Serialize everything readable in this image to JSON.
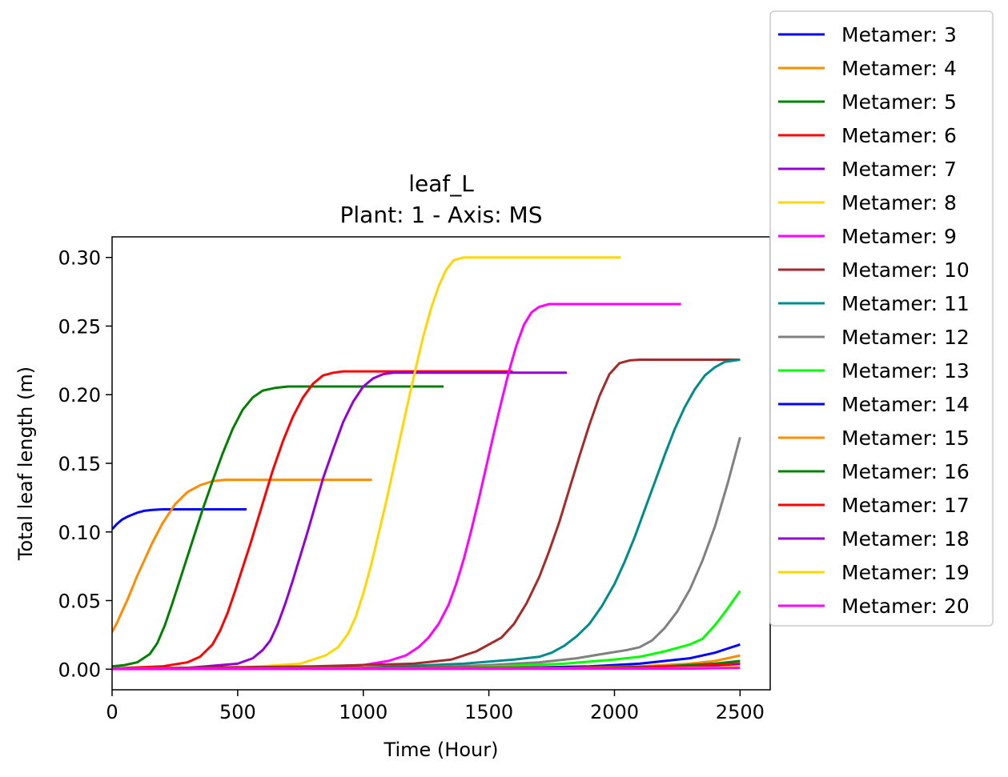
{
  "chart_data": {
    "type": "line",
    "title": "leaf_L",
    "subtitle": "Plant: 1 - Axis: MS",
    "xlabel": "Time (Hour)",
    "ylabel": "Total leaf length (m)",
    "xlim": [
      0,
      2620
    ],
    "ylim": [
      -0.015,
      0.315
    ],
    "xticks": [
      0,
      500,
      1000,
      1500,
      2000,
      2500
    ],
    "yticks": [
      0.0,
      0.05,
      0.1,
      0.15,
      0.2,
      0.25,
      0.3
    ],
    "xtick_labels": [
      "0",
      "500",
      "1000",
      "1500",
      "2000",
      "2500"
    ],
    "ytick_labels": [
      "0.00",
      "0.05",
      "0.10",
      "0.15",
      "0.20",
      "0.25",
      "0.30"
    ],
    "grid": false,
    "legend_position": "outside upper right",
    "series": [
      {
        "name": "Metamer: 3",
        "color": "#0000ff",
        "x": [
          0,
          20,
          40,
          60,
          80,
          100,
          130,
          160,
          200,
          250,
          300,
          400,
          535
        ],
        "y": [
          0.102,
          0.106,
          0.109,
          0.111,
          0.1125,
          0.114,
          0.1155,
          0.116,
          0.1165,
          0.1165,
          0.1165,
          0.1165,
          0.1165
        ]
      },
      {
        "name": "Metamer: 4",
        "color": "#ff8c00",
        "x": [
          0,
          20,
          40,
          60,
          80,
          100,
          130,
          160,
          200,
          250,
          300,
          350,
          400,
          450,
          500,
          600,
          800,
          1035
        ],
        "y": [
          0.027,
          0.034,
          0.042,
          0.05,
          0.059,
          0.068,
          0.08,
          0.092,
          0.106,
          0.12,
          0.129,
          0.134,
          0.137,
          0.138,
          0.138,
          0.138,
          0.138,
          0.138
        ]
      },
      {
        "name": "Metamer: 5",
        "color": "#008000",
        "x": [
          0,
          50,
          100,
          150,
          180,
          210,
          240,
          270,
          300,
          330,
          360,
          400,
          440,
          480,
          520,
          560,
          600,
          650,
          700,
          800,
          1000,
          1320
        ],
        "y": [
          0.002,
          0.003,
          0.005,
          0.011,
          0.019,
          0.032,
          0.048,
          0.065,
          0.082,
          0.099,
          0.116,
          0.137,
          0.157,
          0.175,
          0.189,
          0.198,
          0.203,
          0.205,
          0.206,
          0.206,
          0.206,
          0.206
        ]
      },
      {
        "name": "Metamer: 6",
        "color": "#ff0000",
        "x": [
          0,
          200,
          300,
          350,
          400,
          430,
          460,
          490,
          520,
          550,
          580,
          610,
          640,
          680,
          720,
          760,
          800,
          840,
          880,
          920,
          1000,
          1200,
          1595
        ],
        "y": [
          0.0005,
          0.002,
          0.005,
          0.009,
          0.018,
          0.028,
          0.041,
          0.057,
          0.074,
          0.091,
          0.109,
          0.127,
          0.145,
          0.166,
          0.184,
          0.198,
          0.208,
          0.214,
          0.216,
          0.217,
          0.217,
          0.217,
          0.217
        ]
      },
      {
        "name": "Metamer: 7",
        "color": "#9400d3",
        "x": [
          0,
          300,
          500,
          560,
          600,
          630,
          660,
          690,
          720,
          750,
          780,
          810,
          840,
          880,
          920,
          960,
          1000,
          1040,
          1080,
          1120,
          1200,
          1400,
          1810
        ],
        "y": [
          0.0005,
          0.001,
          0.004,
          0.008,
          0.014,
          0.021,
          0.033,
          0.048,
          0.065,
          0.083,
          0.101,
          0.12,
          0.139,
          0.16,
          0.18,
          0.195,
          0.206,
          0.212,
          0.215,
          0.216,
          0.216,
          0.216,
          0.216
        ]
      },
      {
        "name": "Metamer: 8",
        "color": "#ffd700",
        "x": [
          0,
          500,
          750,
          850,
          900,
          940,
          970,
          1000,
          1030,
          1060,
          1090,
          1120,
          1150,
          1180,
          1210,
          1240,
          1270,
          1300,
          1330,
          1360,
          1400,
          1500,
          1700,
          2025
        ],
        "y": [
          0.0005,
          0.001,
          0.004,
          0.01,
          0.016,
          0.026,
          0.038,
          0.055,
          0.075,
          0.098,
          0.121,
          0.146,
          0.171,
          0.196,
          0.22,
          0.243,
          0.263,
          0.279,
          0.291,
          0.298,
          0.3,
          0.3,
          0.3,
          0.3
        ]
      },
      {
        "name": "Metamer: 9",
        "color": "#ff00ff",
        "x": [
          0,
          700,
          1000,
          1100,
          1170,
          1220,
          1260,
          1300,
          1340,
          1370,
          1400,
          1430,
          1460,
          1490,
          1520,
          1550,
          1580,
          1610,
          1640,
          1670,
          1700,
          1740,
          1800,
          2000,
          2265
        ],
        "y": [
          0.0005,
          0.001,
          0.003,
          0.006,
          0.01,
          0.016,
          0.023,
          0.033,
          0.047,
          0.062,
          0.08,
          0.101,
          0.124,
          0.148,
          0.172,
          0.195,
          0.217,
          0.236,
          0.251,
          0.26,
          0.264,
          0.266,
          0.266,
          0.266,
          0.266
        ]
      },
      {
        "name": "Metamer: 10",
        "color": "#a52a2a",
        "x": [
          0,
          800,
          1200,
          1350,
          1450,
          1550,
          1600,
          1650,
          1700,
          1740,
          1780,
          1820,
          1860,
          1900,
          1940,
          1980,
          2020,
          2060,
          2100,
          2200,
          2500
        ],
        "y": [
          0.0005,
          0.002,
          0.004,
          0.007,
          0.013,
          0.023,
          0.033,
          0.048,
          0.067,
          0.086,
          0.107,
          0.131,
          0.155,
          0.178,
          0.199,
          0.215,
          0.223,
          0.225,
          0.2255,
          0.2255,
          0.2255
        ]
      },
      {
        "name": "Metamer: 11",
        "color": "#008b8b",
        "x": [
          0,
          1000,
          1400,
          1600,
          1700,
          1750,
          1800,
          1850,
          1900,
          1950,
          2000,
          2040,
          2080,
          2120,
          2160,
          2200,
          2240,
          2280,
          2320,
          2360,
          2400,
          2440,
          2500
        ],
        "y": [
          0.0005,
          0.001,
          0.004,
          0.007,
          0.009,
          0.012,
          0.017,
          0.024,
          0.033,
          0.046,
          0.062,
          0.078,
          0.096,
          0.116,
          0.136,
          0.156,
          0.175,
          0.191,
          0.204,
          0.214,
          0.22,
          0.224,
          0.2255
        ]
      },
      {
        "name": "Metamer: 12",
        "color": "#808080",
        "x": [
          0,
          1200,
          1500,
          1700,
          1850,
          1950,
          2050,
          2100,
          2150,
          2200,
          2250,
          2300,
          2350,
          2400,
          2450,
          2500
        ],
        "y": [
          0.0005,
          0.001,
          0.003,
          0.005,
          0.008,
          0.011,
          0.014,
          0.016,
          0.021,
          0.03,
          0.042,
          0.058,
          0.079,
          0.104,
          0.135,
          0.169
        ]
      },
      {
        "name": "Metamer: 13",
        "color": "#00ff00",
        "x": [
          0,
          1400,
          1800,
          2000,
          2100,
          2200,
          2300,
          2350,
          2400,
          2450,
          2500
        ],
        "y": [
          0.0005,
          0.001,
          0.004,
          0.007,
          0.009,
          0.013,
          0.018,
          0.022,
          0.032,
          0.044,
          0.057
        ]
      },
      {
        "name": "Metamer: 14",
        "color": "#0000ff",
        "x": [
          0,
          1600,
          1900,
          2100,
          2200,
          2300,
          2400,
          2450,
          2500
        ],
        "y": [
          0.0005,
          0.001,
          0.002,
          0.004,
          0.006,
          0.008,
          0.012,
          0.015,
          0.018
        ]
      },
      {
        "name": "Metamer: 15",
        "color": "#ff8c00",
        "x": [
          0,
          1800,
          2100,
          2300,
          2400,
          2450,
          2500
        ],
        "y": [
          0.0005,
          0.001,
          0.002,
          0.004,
          0.006,
          0.008,
          0.01
        ]
      },
      {
        "name": "Metamer: 16",
        "color": "#008000",
        "x": [
          0,
          1900,
          2200,
          2400,
          2500
        ],
        "y": [
          0.0005,
          0.001,
          0.002,
          0.004,
          0.006
        ]
      },
      {
        "name": "Metamer: 17",
        "color": "#ff0000",
        "x": [
          0,
          2000,
          2300,
          2400,
          2500
        ],
        "y": [
          0.0005,
          0.001,
          0.002,
          0.003,
          0.004
        ]
      },
      {
        "name": "Metamer: 18",
        "color": "#9400d3",
        "x": [
          0,
          2100,
          2400,
          2500
        ],
        "y": [
          0.0003,
          0.0006,
          0.0015,
          0.003
        ]
      },
      {
        "name": "Metamer: 19",
        "color": "#ffd700",
        "x": [
          0,
          2200,
          2400,
          2500
        ],
        "y": [
          0.0002,
          0.0005,
          0.001,
          0.002
        ]
      },
      {
        "name": "Metamer: 20",
        "color": "#ff00ff",
        "x": [
          0,
          2300,
          2500
        ],
        "y": [
          0.0001,
          0.0004,
          0.001
        ]
      }
    ]
  }
}
